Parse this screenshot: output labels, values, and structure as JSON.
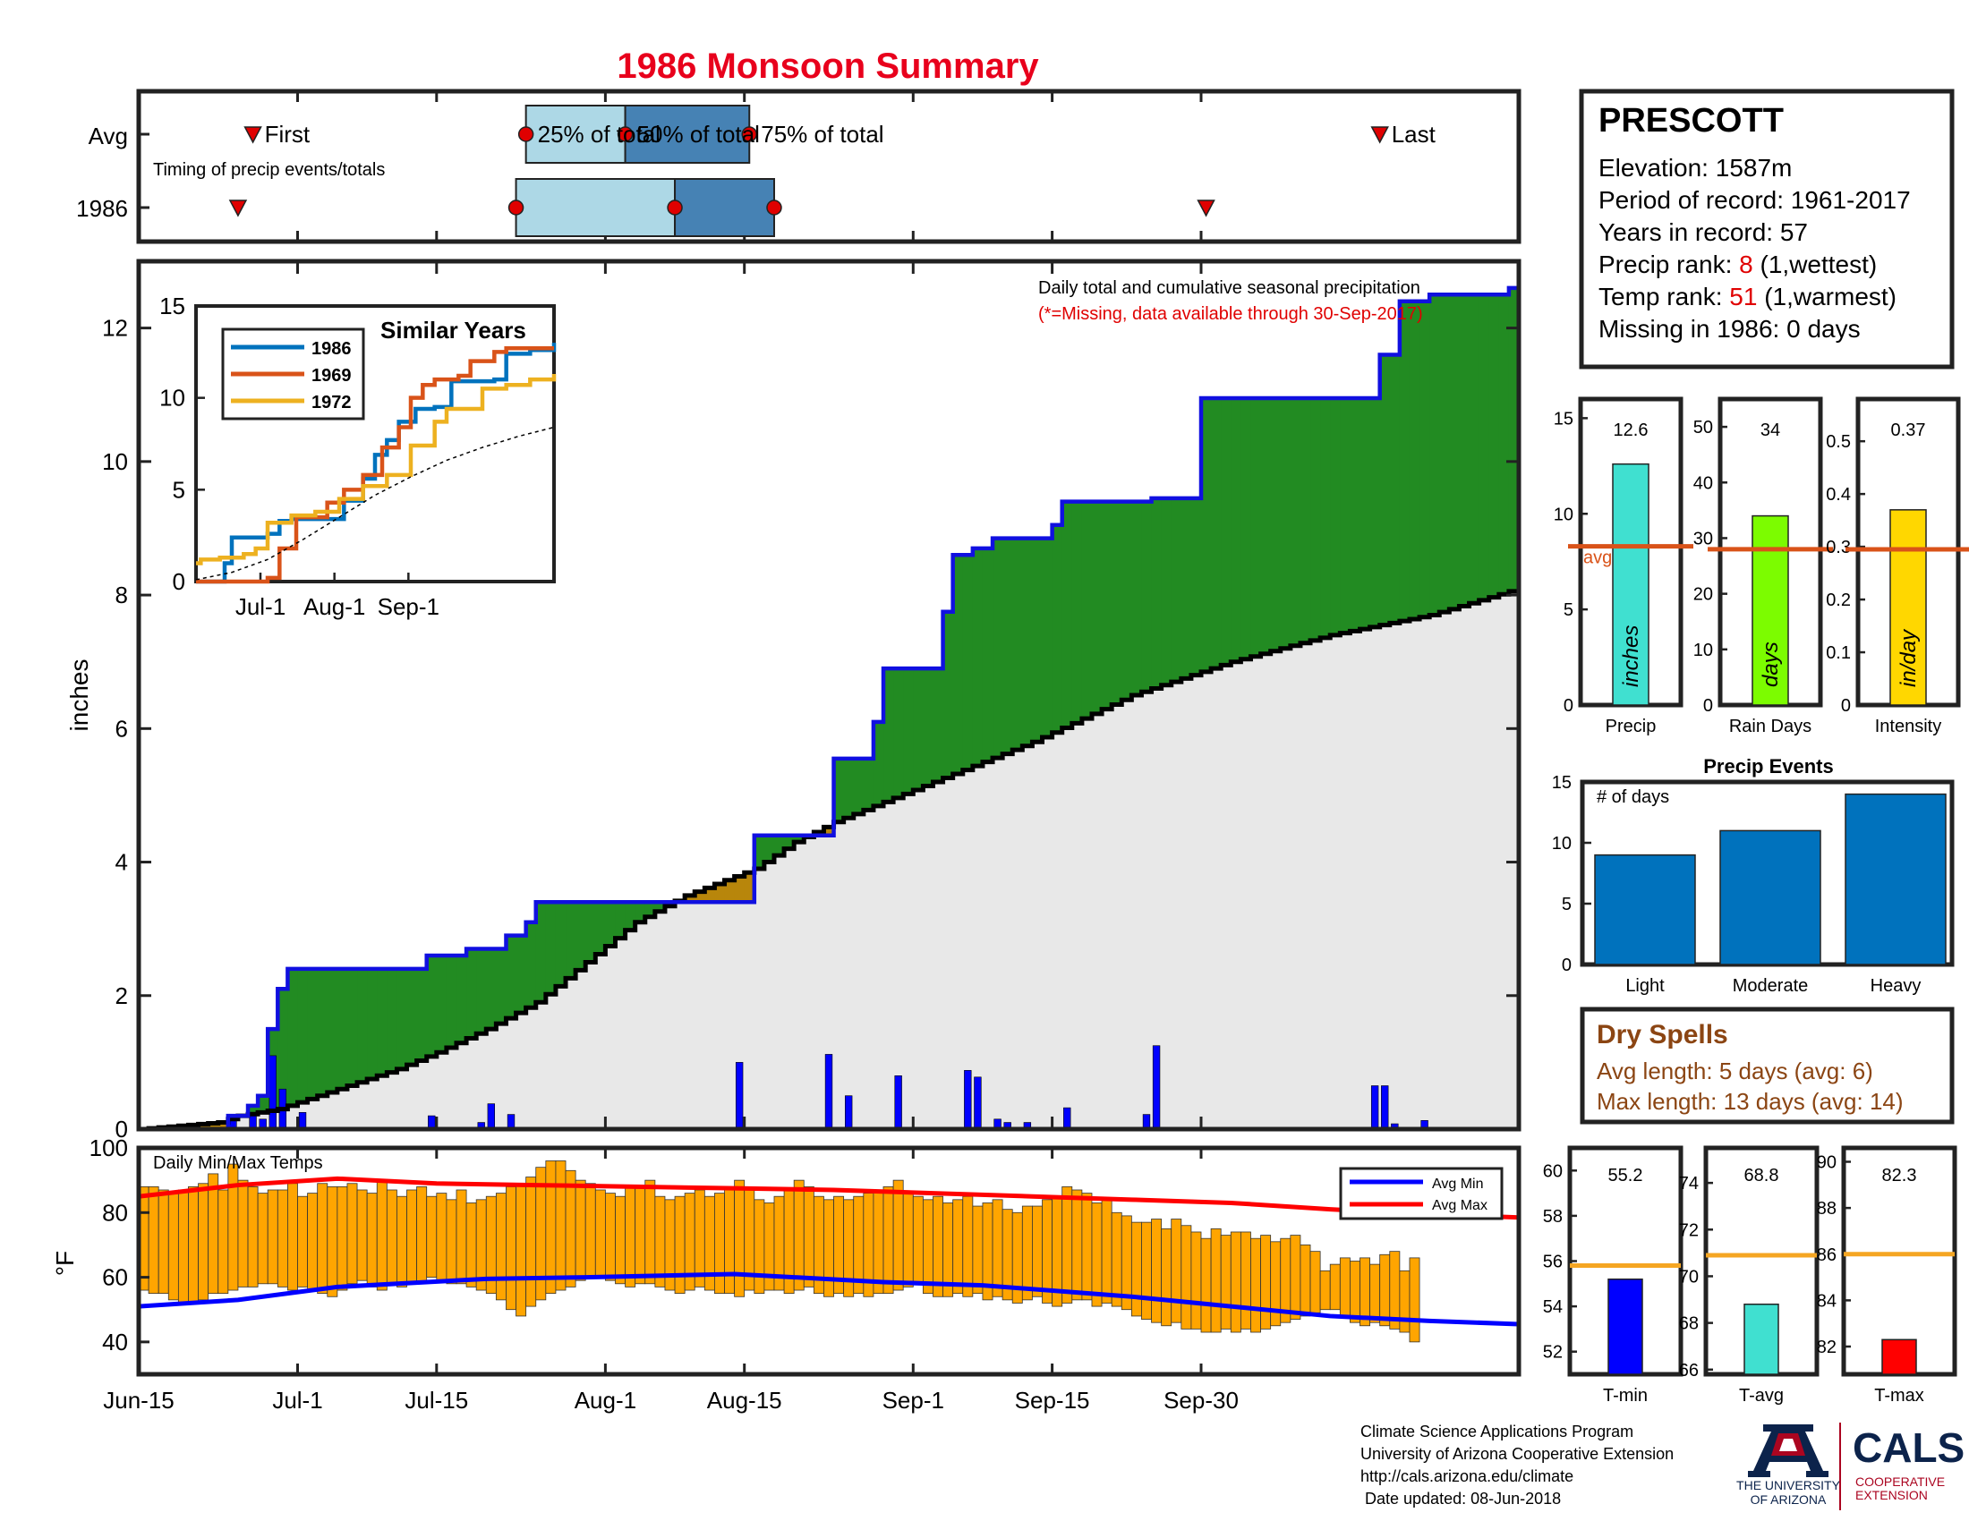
{
  "title": "1986 Monsoon Summary",
  "timing": {
    "row_labels": [
      "Avg",
      "1986"
    ],
    "subtitle": "Timing of precip events/totals",
    "avg_labels": {
      "first": "First",
      "p25": "25% of total",
      "p50": "50% of total",
      "p75": "75% of total",
      "last": "Last"
    },
    "avg_days": {
      "first": 11.5,
      "p25": 39,
      "p50": 49,
      "p75": 61.5,
      "last": 125
    },
    "year_days": {
      "first": 10,
      "p25": 38,
      "p50": 54,
      "p75": 64,
      "last": 107.5
    },
    "colors": {
      "light": "#add8e6",
      "dark": "#4682b4",
      "marker": "#e00000"
    }
  },
  "station": {
    "name": "PRESCOTT",
    "elevation_label": "Elevation: 1587m",
    "period_label": "Period of record: 1961-2017",
    "years_label": "Years in record: 57",
    "precip_rank_prefix": "Precip rank: ",
    "precip_rank": "8",
    "precip_rank_suffix": " (1,wettest)",
    "temp_rank_prefix": "Temp rank: ",
    "temp_rank": "51",
    "temp_rank_suffix": " (1,warmest)",
    "missing_label": "Missing in 1986: 0 days"
  },
  "main_plot": {
    "ylabel": "inches",
    "note": "Daily total and cumulative seasonal precipitation",
    "missing_note": "(*=Missing, data available through 30-Sep-2017)",
    "x_tick_labels": [
      "Jun-15",
      "Jul-1",
      "Jul-15",
      "Aug-1",
      "Aug-15",
      "Sep-1",
      "Sep-15",
      "Sep-30"
    ]
  },
  "similar_years": {
    "title": "Similar Years",
    "legend": [
      "1986",
      "1969",
      "1972"
    ],
    "colors": [
      "#0072bd",
      "#d95319",
      "#edb120"
    ],
    "x_tick_labels": [
      "Jul-1",
      "Aug-1",
      "Sep-1"
    ]
  },
  "stat_bars": [
    {
      "label": "Precip",
      "value_label": "12.6",
      "unit": "inches",
      "value": 12.6,
      "avg": 8.3,
      "avg_label": "avg",
      "color": "#40e0d0"
    },
    {
      "label": "Rain Days",
      "value_label": "34",
      "unit": "days",
      "value": 34,
      "avg": 28,
      "color": "#7cfc00"
    },
    {
      "label": "Intensity",
      "value_label": "0.37",
      "unit": "in/day",
      "value": 0.37,
      "avg": 0.295,
      "color": "#ffd700"
    }
  ],
  "precip_events": {
    "title": "Precip Events",
    "ylabel": "# of days",
    "categories": [
      "Light",
      "Moderate",
      "Heavy"
    ],
    "values": [
      9,
      11,
      14
    ],
    "color": "#0072bd"
  },
  "dry_spells": {
    "title": "Dry Spells",
    "avg_line": "Avg length: 5 days (avg: 6)",
    "max_line": "Max length: 13 days (avg: 14)",
    "color": "#8b4513"
  },
  "temp_plot": {
    "title": "Daily Min/Max Temps",
    "ylabel": "°F",
    "legend": [
      "Avg Min",
      "Avg Max"
    ],
    "bar_color": "#ffa500"
  },
  "temp_bars": [
    {
      "label": "T-min",
      "value_label": "55.2",
      "value": 55.2,
      "avg": 55.8,
      "color": "#0000ff"
    },
    {
      "label": "T-avg",
      "value_label": "68.8",
      "value": 68.8,
      "avg": 70.9,
      "color": "#40e0d0"
    },
    {
      "label": "T-max",
      "value_label": "82.3",
      "value": 82.3,
      "avg": 86,
      "color": "#ff0000"
    }
  ],
  "footer": {
    "lines": [
      "Climate Science Applications Program",
      "University of Arizona Cooperative Extension",
      "http://cals.arizona.edu/climate",
      " Date updated: 08-Jun-2018"
    ],
    "ua_logo": [
      "THE UNIVERSITY",
      "OF ARIZONA"
    ],
    "cals_logo": [
      "CALS",
      "COOPERATIVE",
      "EXTENSION"
    ]
  },
  "chart_data": [
    {
      "type": "line",
      "title": "1986 Monsoon Summary",
      "ylabel": "inches",
      "xlim": [
        "Jun-15",
        "Sep-30"
      ],
      "ylim": [
        0,
        13
      ],
      "series": [
        {
          "name": "cumulative 1986",
          "x": [
            0,
            9,
            10,
            11,
            12,
            13,
            14,
            15,
            29,
            31,
            33,
            37,
            39,
            40,
            53,
            61,
            62,
            63,
            69,
            70,
            71,
            74,
            75,
            76,
            77,
            81,
            82,
            84,
            86,
            87,
            91,
            92,
            93,
            96,
            101,
            102,
            103,
            107,
            124,
            125,
            127,
            130,
            131,
            132,
            137,
            138,
            139
          ],
          "y": [
            0,
            0.2,
            0.2,
            0.35,
            0.5,
            1.5,
            2.1,
            2.4,
            2.6,
            2.6,
            2.7,
            2.9,
            3.1,
            3.4,
            3.4,
            3.4,
            4.4,
            4.4,
            4.4,
            5.55,
            5.55,
            6.1,
            6.9,
            6.9,
            6.9,
            7.75,
            8.6,
            8.7,
            8.85,
            8.85,
            8.85,
            9.05,
            9.4,
            9.4,
            9.4,
            9.45,
            9.45,
            10.95,
            10.95,
            11.6,
            12.4,
            12.5,
            12.5,
            12.5,
            12.5,
            12.6,
            12.6
          ]
        },
        {
          "name": "cumulative average",
          "x": [
            0,
            8,
            10,
            14,
            18,
            22,
            26,
            30,
            35,
            40,
            45,
            50,
            55,
            62,
            66,
            70,
            80,
            90,
            100,
            110,
            120,
            130,
            139
          ],
          "y": [
            0,
            0.1,
            0.2,
            0.3,
            0.5,
            0.7,
            0.9,
            1.15,
            1.5,
            1.9,
            2.5,
            3.1,
            3.5,
            3.9,
            4.3,
            4.6,
            5.2,
            5.8,
            6.5,
            7.0,
            7.4,
            7.7,
            8.1
          ]
        }
      ],
      "daily_precip": {
        "x": [
          9,
          11,
          12,
          13,
          14,
          16,
          29,
          34,
          35,
          37,
          60,
          69,
          71,
          76,
          83,
          84,
          86,
          87,
          89,
          93,
          101,
          102,
          124,
          125,
          126,
          129
        ],
        "y": [
          0.2,
          0.25,
          0.15,
          1.1,
          0.6,
          0.25,
          0.2,
          0.1,
          0.38,
          0.22,
          1.0,
          1.12,
          0.5,
          0.8,
          0.88,
          0.78,
          0.15,
          0.1,
          0.1,
          0.32,
          0.22,
          1.25,
          0.65,
          0.65,
          0.08,
          0.13
        ]
      }
    },
    {
      "type": "line",
      "title": "Similar Years",
      "ylim": [
        0,
        15
      ],
      "x_tick_labels": [
        "Jul-1",
        "Aug-1",
        "Sep-1"
      ],
      "series": [
        {
          "name": "1986",
          "x": [
            0,
            10,
            12,
            15,
            30,
            35,
            40,
            55,
            62,
            70,
            75,
            80,
            85,
            92,
            100,
            107,
            110,
            125,
            130,
            140,
            150
          ],
          "y": [
            0,
            0,
            1.0,
            2.4,
            2.6,
            3.3,
            3.4,
            3.4,
            4.4,
            5.6,
            6.9,
            7.7,
            8.7,
            9.4,
            9.5,
            10.9,
            10.9,
            11.0,
            12.4,
            12.6,
            13.0
          ]
        },
        {
          "name": "1969",
          "x": [
            0,
            22,
            30,
            35,
            42,
            55,
            62,
            70,
            78,
            85,
            90,
            95,
            100,
            110,
            115,
            125,
            130,
            140,
            150
          ],
          "y": [
            0,
            0,
            0.2,
            1.8,
            3.5,
            4.3,
            5.0,
            5.8,
            7.3,
            8.4,
            10.0,
            10.7,
            11.0,
            11.2,
            12.0,
            12.5,
            12.7,
            12.7,
            12.7
          ]
        },
        {
          "name": "1972",
          "x": [
            0,
            2,
            10,
            20,
            25,
            30,
            40,
            50,
            60,
            70,
            80,
            90,
            100,
            105,
            120,
            130,
            140,
            150
          ],
          "y": [
            1.0,
            1.2,
            1.3,
            1.5,
            1.8,
            3.2,
            3.6,
            3.8,
            4.5,
            5.2,
            5.8,
            7.4,
            8.7,
            9.4,
            10.5,
            10.7,
            11.0,
            11.3
          ]
        },
        {
          "name": "average",
          "x": [
            0,
            15,
            30,
            45,
            60,
            75,
            90,
            105,
            120,
            135,
            150
          ],
          "y": [
            0.1,
            0.5,
            1.2,
            2.3,
            3.5,
            4.7,
            5.7,
            6.6,
            7.3,
            7.9,
            8.4
          ]
        }
      ]
    },
    {
      "type": "bar",
      "title": "Precip Events",
      "ylabel": "# of days",
      "categories": [
        "Light",
        "Moderate",
        "Heavy"
      ],
      "values": [
        9,
        11,
        14
      ],
      "ylim": [
        0,
        15
      ]
    },
    {
      "type": "bar",
      "title": "Daily Min/Max Temps",
      "ylabel": "°F",
      "ylim": [
        30,
        100
      ],
      "daily_max": [
        88,
        88,
        87,
        86,
        87,
        88,
        89,
        92,
        87,
        95,
        90,
        88,
        86,
        87,
        87,
        89,
        85,
        86,
        89,
        88,
        88,
        89,
        87,
        86,
        90,
        87,
        85,
        87,
        88,
        85,
        86,
        84,
        87,
        83,
        84,
        85,
        86,
        88,
        89,
        91,
        94,
        96,
        96,
        93,
        90,
        89,
        87,
        86,
        85,
        88,
        88,
        90,
        85,
        84,
        85,
        86,
        87,
        85,
        86,
        88,
        90,
        87,
        84,
        83,
        85,
        87,
        90,
        88,
        85,
        84,
        85,
        84,
        85,
        86,
        87,
        88,
        90,
        86,
        85,
        84,
        85,
        83,
        84,
        85,
        82,
        83,
        84,
        81,
        80,
        82,
        82,
        84,
        85,
        88,
        87,
        86,
        83,
        84,
        80,
        79,
        77,
        77,
        78,
        75,
        78,
        76,
        74,
        72,
        75,
        73,
        74,
        74,
        72,
        73,
        71,
        72,
        73,
        70,
        68,
        62,
        64,
        66,
        65,
        66,
        64,
        67,
        68,
        62,
        66
      ],
      "daily_min": [
        56,
        55,
        55,
        53,
        52,
        52,
        53,
        55,
        55,
        56,
        57,
        57,
        58,
        58,
        57,
        56,
        57,
        56,
        55,
        54,
        56,
        58,
        59,
        57,
        56,
        58,
        57,
        58,
        58,
        60,
        59,
        58,
        58,
        57,
        56,
        55,
        53,
        50,
        48,
        51,
        53,
        55,
        56,
        57,
        59,
        60,
        60,
        59,
        58,
        57,
        58,
        58,
        57,
        56,
        55,
        56,
        57,
        56,
        55,
        55,
        54,
        56,
        55,
        56,
        56,
        55,
        56,
        57,
        55,
        54,
        55,
        54,
        55,
        54,
        55,
        55,
        56,
        57,
        58,
        55,
        54,
        54,
        55,
        54,
        55,
        53,
        54,
        53,
        52,
        53,
        54,
        52,
        51,
        52,
        53,
        53,
        51,
        52,
        51,
        50,
        48,
        47,
        46,
        45,
        46,
        44,
        44,
        43,
        43,
        44,
        43,
        44,
        43,
        44,
        45,
        46,
        47,
        48,
        49,
        50,
        50,
        48,
        46,
        45,
        46,
        45,
        44,
        43,
        40
      ],
      "avg_min": {
        "x": [
          0,
          10,
          20,
          35,
          45,
          60,
          75,
          85,
          100,
          110,
          120,
          130,
          139
        ],
        "y": [
          51,
          53,
          57,
          59.5,
          60,
          61,
          58.5,
          57.5,
          54,
          51,
          48,
          46.5,
          45.5
        ]
      },
      "avg_max": {
        "x": [
          0,
          10,
          20,
          30,
          40,
          60,
          70,
          80,
          90,
          100,
          110,
          120,
          130,
          139
        ],
        "y": [
          85,
          88.5,
          90.5,
          89,
          88.5,
          87.5,
          87,
          86,
          85,
          84,
          83,
          81,
          79.5,
          78.5
        ]
      }
    },
    {
      "type": "bar",
      "categories": [
        "Precip",
        "Rain Days",
        "Intensity",
        "T-min",
        "T-avg",
        "T-max"
      ],
      "values": [
        12.6,
        34,
        0.37,
        55.2,
        68.8,
        82.3
      ],
      "averages": [
        8.3,
        28,
        0.295,
        55.8,
        70.9,
        86
      ]
    }
  ]
}
